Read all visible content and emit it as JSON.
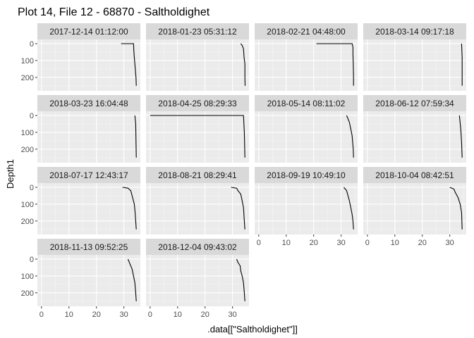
{
  "chart_data": {
    "type": "line",
    "title": "Plot 14, File 12 - 68870  -  Saltholdighet",
    "xlabel": ".data[[\"Saltholdighet\"]]",
    "ylabel": "Depth1",
    "xlim": [
      -1.5,
      36
    ],
    "ylim": [
      -25,
      280
    ],
    "y_reversed": true,
    "x_ticks": [
      0,
      10,
      20,
      30
    ],
    "y_ticks": [
      0,
      100,
      200
    ],
    "grid": true,
    "facet_layout": "wrap-4-columns",
    "panels": [
      {
        "label": "2017-12-14 01:12:00",
        "x": [
          29,
          33.5,
          33.6,
          33.8,
          34.0,
          34.2,
          34.4,
          34.5
        ],
        "y": [
          0,
          0,
          40,
          80,
          120,
          160,
          200,
          250
        ]
      },
      {
        "label": "2018-01-23 05:31:12",
        "x": [
          33.0,
          33.5,
          34.0,
          34.2,
          34.5,
          34.5,
          34.6
        ],
        "y": [
          0,
          10,
          30,
          80,
          120,
          200,
          250
        ]
      },
      {
        "label": "2018-02-21 04:48:00",
        "x": [
          21,
          34.0,
          34.3,
          34.3,
          34.4,
          34.5,
          34.5
        ],
        "y": [
          0,
          0,
          20,
          60,
          120,
          200,
          250
        ]
      },
      {
        "label": "2018-03-14 09:17:18",
        "x": [
          34.3,
          34.5,
          34.5,
          34.5
        ],
        "y": [
          0,
          80,
          200,
          250
        ]
      },
      {
        "label": "2018-03-23 16:04:48",
        "x": [
          34.0,
          34.3,
          34.4,
          34.5
        ],
        "y": [
          0,
          50,
          150,
          250
        ]
      },
      {
        "label": "2018-04-25 08:29:33",
        "x": [
          0,
          34.0,
          34.3,
          34.5
        ],
        "y": [
          0,
          0,
          100,
          250
        ]
      },
      {
        "label": "2018-05-14 08:11:02",
        "x": [
          32.0,
          32.5,
          33.0,
          33.5,
          34.0,
          34.2,
          34.4,
          34.5
        ],
        "y": [
          0,
          20,
          40,
          80,
          120,
          160,
          200,
          250
        ]
      },
      {
        "label": "2018-06-12 07:59:34",
        "x": [
          33.5,
          34.0,
          34.3,
          34.5
        ],
        "y": [
          0,
          80,
          160,
          250
        ]
      },
      {
        "label": "2018-07-17 12:43:17",
        "x": [
          29.5,
          31.5,
          32.5,
          33.0,
          33.8,
          34.1,
          34.3,
          34.5
        ],
        "y": [
          0,
          5,
          20,
          50,
          100,
          150,
          200,
          250
        ]
      },
      {
        "label": "2018-08-21 08:29:41",
        "x": [
          29.5,
          31.5,
          32.0,
          33.0,
          33.5,
          34.0,
          34.3,
          34.5
        ],
        "y": [
          0,
          5,
          20,
          40,
          80,
          120,
          200,
          250
        ]
      },
      {
        "label": "2018-09-19 10:49:10",
        "x": [
          31.0,
          32.0,
          32.5,
          33.0,
          33.5,
          34.0,
          34.3,
          34.5
        ],
        "y": [
          0,
          20,
          50,
          80,
          120,
          160,
          200,
          250
        ]
      },
      {
        "label": "2018-10-04 08:42:51",
        "x": [
          30.0,
          31.5,
          32.0,
          33.0,
          33.8,
          34.3,
          34.5
        ],
        "y": [
          0,
          10,
          30,
          60,
          100,
          150,
          250
        ]
      },
      {
        "label": "2018-11-13 09:52:25",
        "x": [
          31.5,
          32.0,
          32.5,
          33.0,
          33.5,
          34.0,
          34.3,
          34.5
        ],
        "y": [
          0,
          20,
          40,
          60,
          100,
          140,
          200,
          250
        ]
      },
      {
        "label": "2018-12-04 09:43:02",
        "x": [
          31.5,
          32.0,
          32.8,
          33.0,
          33.5,
          34.0,
          34.3,
          34.5
        ],
        "y": [
          0,
          20,
          40,
          70,
          100,
          140,
          200,
          250
        ]
      }
    ]
  },
  "colors": {
    "panel_bg": "#ebebeb",
    "strip_bg": "#d9d9d9",
    "grid_major": "#ffffff",
    "grid_minor": "#f5f5f5",
    "line": "#000000",
    "tick_label": "#4d4d4d",
    "text": "#1a1a1a"
  }
}
